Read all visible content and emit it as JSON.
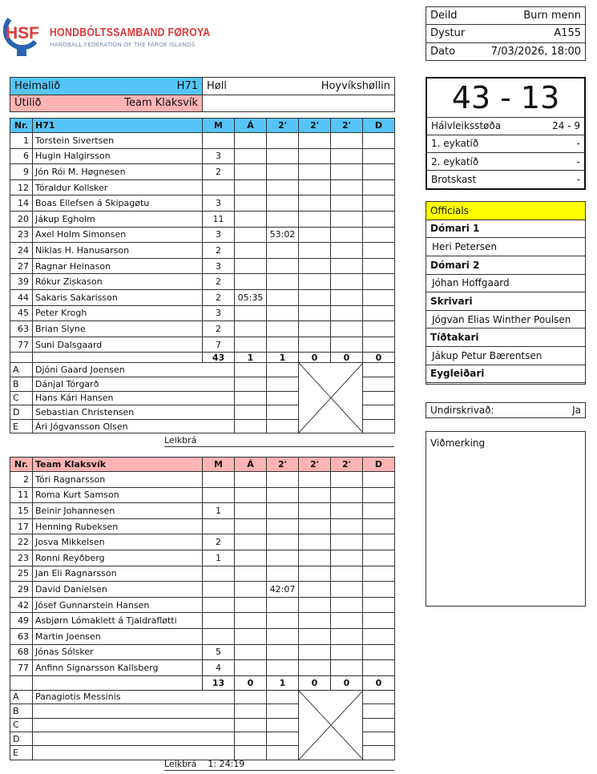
{
  "logo": {
    "title": "HONDBÓLTSSAMBAND FØROYA",
    "subtitle": "HANDBALL FEDERATION OF THE FAROE ISLANDS",
    "letters": "HSF"
  },
  "match": {
    "home_label": "Heimalið",
    "home_team": "H71",
    "away_label": "Útilið",
    "away_team": "Team Klaksvík",
    "venue_label": "Høll",
    "venue": "Hoyvíkshøllin"
  },
  "info": [
    {
      "label": "Deild",
      "value": "Burn menn"
    },
    {
      "label": "Dystur",
      "value": "A155"
    },
    {
      "label": "Dato",
      "value": "7/03/2026, 18:00"
    }
  ],
  "score": {
    "final": "43 - 13",
    "rows": [
      {
        "label": "Hálvleiksstøða",
        "value": "24 - 9"
      },
      {
        "label": "1. eykatíð",
        "value": "-"
      },
      {
        "label": "2. eykatíð",
        "value": "-"
      },
      {
        "label": "Brotskast",
        "value": "-"
      }
    ]
  },
  "officials": {
    "title": "Officials",
    "roles": [
      {
        "role": "Dómari 1",
        "name": "Heri Petersen"
      },
      {
        "role": "Dómari 2",
        "name": "Jóhan Hoffgaard"
      },
      {
        "role": "Skrivari",
        "name": "Jógvan Elias Winther Poulsen"
      },
      {
        "role": "Tíðtakari",
        "name": "Jákup Petur Bærentsen"
      },
      {
        "role": "Eygleiðari",
        "name": ""
      }
    ]
  },
  "signed": {
    "label": "Undirskrivað:",
    "value": "Ja"
  },
  "remarks": {
    "label": "Viðmerking"
  },
  "columns": [
    "Nr.",
    "M",
    "Á",
    "2'",
    "2'",
    "2'",
    "D"
  ],
  "colors": {
    "home": "#55c5f7",
    "away": "#ffb3b3",
    "officials": "#ffff00"
  },
  "teams": [
    {
      "name": "H71",
      "players": [
        [
          "1",
          "Torstein Sivertsen",
          "",
          "",
          "",
          "",
          "",
          ""
        ],
        [
          "6",
          "Hugin Halgirsson",
          "3",
          "",
          "",
          "",
          "",
          ""
        ],
        [
          "9",
          "Jón Rói M. Høgnesen",
          "2",
          "",
          "",
          "",
          "",
          ""
        ],
        [
          "12",
          "Tóraldur Kollsker",
          "",
          "",
          "",
          "",
          "",
          ""
        ],
        [
          "14",
          "Boas Ellefsen á Skipagøtu",
          "3",
          "",
          "",
          "",
          "",
          ""
        ],
        [
          "20",
          "Jákup Egholm",
          "11",
          "",
          "",
          "",
          "",
          ""
        ],
        [
          "23",
          "Axel Holm Simonsen",
          "3",
          "",
          "53:02",
          "",
          "",
          ""
        ],
        [
          "24",
          "Niklas H. Hanusarson",
          "2",
          "",
          "",
          "",
          "",
          ""
        ],
        [
          "27",
          "Ragnar Heinason",
          "3",
          "",
          "",
          "",
          "",
          ""
        ],
        [
          "39",
          "Rókur Ziskason",
          "2",
          "",
          "",
          "",
          "",
          ""
        ],
        [
          "44",
          "Sakaris Sakarisson",
          "2",
          "05:35",
          "",
          "",
          "",
          ""
        ],
        [
          "45",
          "Peter Krogh",
          "3",
          "",
          "",
          "",
          "",
          ""
        ],
        [
          "63",
          "Brian Slyne",
          "2",
          "",
          "",
          "",
          "",
          ""
        ],
        [
          "77",
          "Suni Dalsgaard",
          "7",
          "",
          "",
          "",
          "",
          ""
        ]
      ],
      "totals": [
        "43",
        "1",
        "1",
        "0",
        "0",
        "0"
      ],
      "staff": [
        [
          "A",
          "Djóni Gaard Joensen"
        ],
        [
          "B",
          "Dánjal Tórgarð"
        ],
        [
          "C",
          "Hans Kári Hansen"
        ],
        [
          "D",
          "Sebastian Christensen"
        ],
        [
          "E",
          "Ári Jógvansson Olsen"
        ]
      ],
      "leikbra": {
        "label": "Leikbrá",
        "value": ""
      }
    },
    {
      "name": "Team Klaksvík",
      "players": [
        [
          "2",
          "Tóri Ragnarsson",
          "",
          "",
          "",
          "",
          "",
          ""
        ],
        [
          "11",
          "Roma Kurt Samson",
          "",
          "",
          "",
          "",
          "",
          ""
        ],
        [
          "15",
          "Beinir Johannesen",
          "1",
          "",
          "",
          "",
          "",
          ""
        ],
        [
          "17",
          "Henning Rubeksen",
          "",
          "",
          "",
          "",
          "",
          ""
        ],
        [
          "22",
          "Josva Mikkelsen",
          "2",
          "",
          "",
          "",
          "",
          ""
        ],
        [
          "23",
          "Ronni Reyðberg",
          "1",
          "",
          "",
          "",
          "",
          ""
        ],
        [
          "25",
          "Jan Eli Ragnarsson",
          "",
          "",
          "",
          "",
          "",
          ""
        ],
        [
          "29",
          "David Danielsen",
          "",
          "",
          "42:07",
          "",
          "",
          ""
        ],
        [
          "42",
          "Jósef Gunnarstein Hansen",
          "",
          "",
          "",
          "",
          "",
          ""
        ],
        [
          "49",
          "Asbjørn Lómaklett á Tjaldrafløtti",
          "",
          "",
          "",
          "",
          "",
          ""
        ],
        [
          "63",
          "Martin Joensen",
          "",
          "",
          "",
          "",
          "",
          ""
        ],
        [
          "68",
          "Jónas Sólsker",
          "5",
          "",
          "",
          "",
          "",
          ""
        ],
        [
          "77",
          "Anfinn Signarsson Kallsberg",
          "4",
          "",
          "",
          "",
          "",
          ""
        ]
      ],
      "totals": [
        "13",
        "0",
        "1",
        "0",
        "0",
        "0"
      ],
      "staff": [
        [
          "A",
          "Panagiotis Messinis"
        ],
        [
          "B",
          ""
        ],
        [
          "C",
          ""
        ],
        [
          "D",
          ""
        ],
        [
          "E",
          ""
        ]
      ],
      "leikbra": {
        "label": "Leikbrá",
        "value": "1:  24:19"
      }
    }
  ]
}
